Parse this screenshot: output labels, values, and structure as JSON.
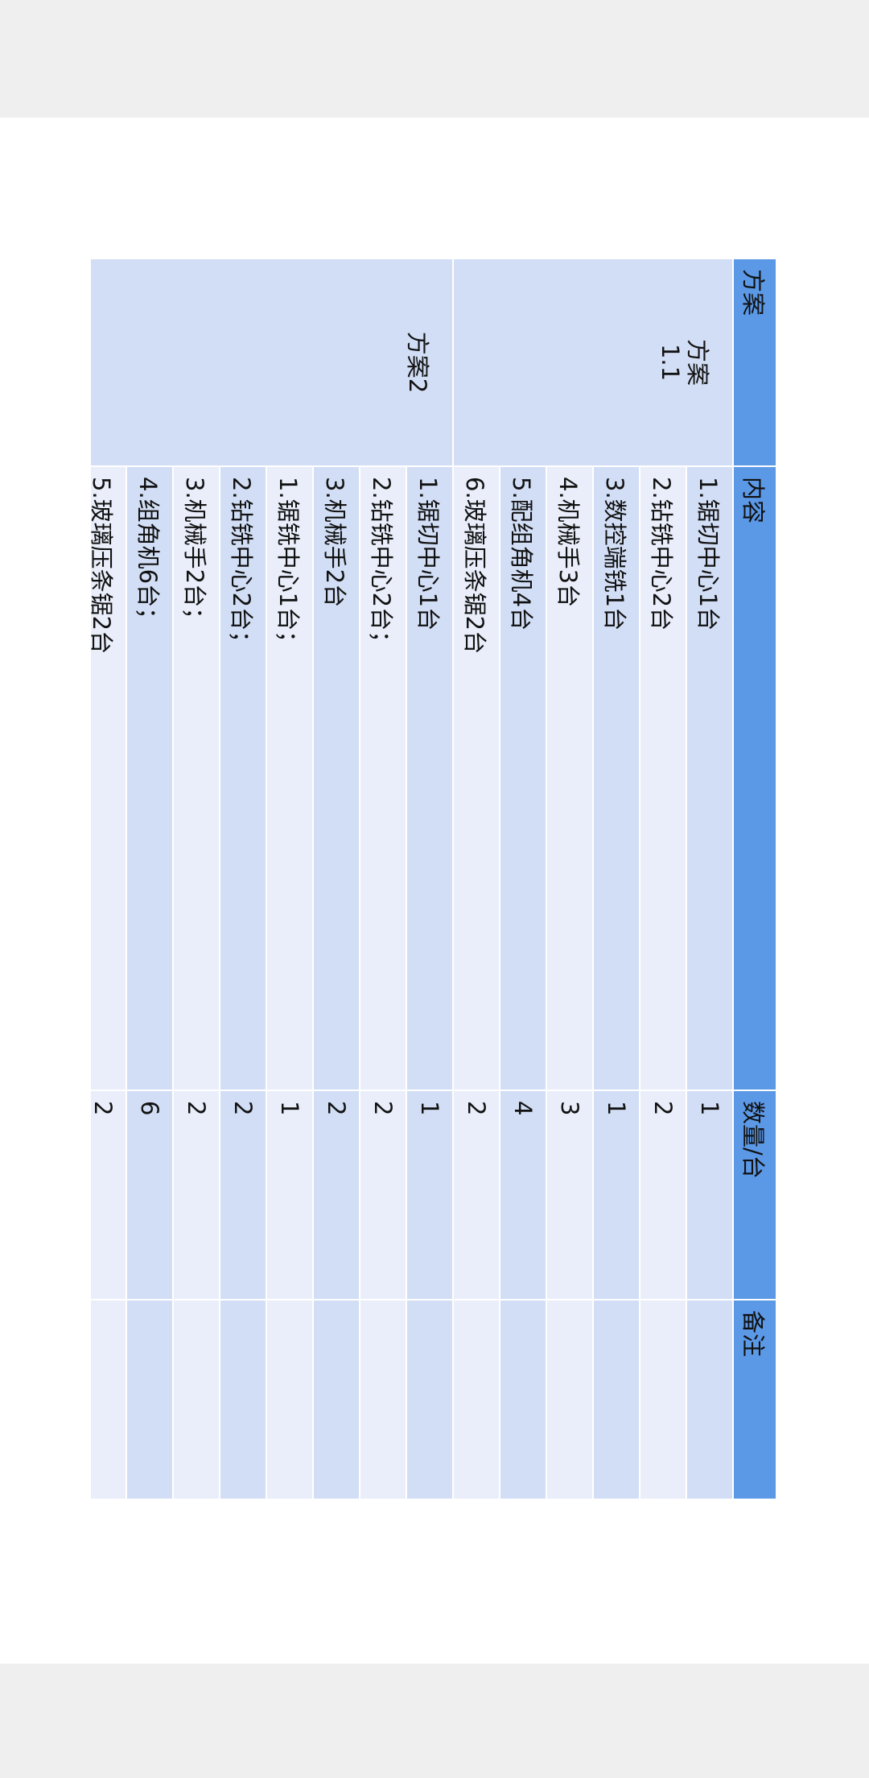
{
  "table": {
    "headers": [
      "方案",
      "内容",
      "数量/台",
      "备注"
    ],
    "groups": [
      {
        "plan": "方案\n1.1",
        "rows": [
          {
            "content": "1.锯切中心1台",
            "qty": "1",
            "note": ""
          },
          {
            "content": "2.钻铣中心2台",
            "qty": "2",
            "note": ""
          },
          {
            "content": "3.数控端铣1台",
            "qty": "1",
            "note": ""
          },
          {
            "content": "4.机械手3台",
            "qty": "3",
            "note": ""
          },
          {
            "content": "5.配组角机4台",
            "qty": "4",
            "note": ""
          },
          {
            "content": "6.玻璃压条锯2台",
            "qty": "2",
            "note": ""
          }
        ]
      },
      {
        "plan": "方案2",
        "rows": [
          {
            "content": "1.锯切中心1台",
            "qty": "1",
            "note": ""
          },
          {
            "content": "2.钻铣中心2台；",
            "qty": "2",
            "note": ""
          },
          {
            "content": "3.机械手2台",
            "qty": "2",
            "note": ""
          },
          {
            "content": "1.锯铣中心1台；",
            "qty": "1",
            "note": ""
          },
          {
            "content": "2.钻铣中心2台；",
            "qty": "2",
            "note": ""
          },
          {
            "content": "3.机械手2台；",
            "qty": "2",
            "note": ""
          },
          {
            "content": "4.组角机6台；",
            "qty": "6",
            "note": ""
          },
          {
            "content": "5.玻璃压条锯2台",
            "qty": "2",
            "note": ""
          }
        ]
      }
    ],
    "colors": {
      "header": "#5b98e6",
      "row_dark": "#d2def5",
      "row_light": "#e9eefa"
    }
  }
}
